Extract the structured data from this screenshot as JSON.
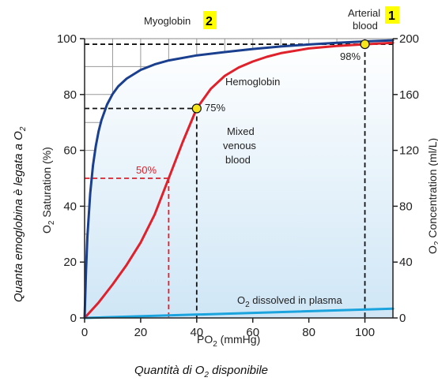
{
  "chart_data": {
    "type": "line",
    "xlabel": "PO",
    "xlabel_sub": "2",
    "xlabel_unit": " (mmHg)",
    "ylabel_left": "O",
    "ylabel_left_sub": "2",
    "ylabel_left_rest": " Saturation (%)",
    "ylabel_right": "O",
    "ylabel_right_sub": "2",
    "ylabel_right_rest": " Concentration (ml/L)",
    "outer_left_label": "Quanta emoglobina è legata a O",
    "outer_left_sub": "2",
    "outer_bottom_label": "Quantità di O",
    "outer_bottom_sub": "2",
    "outer_bottom_rest": " disponibile",
    "x_ticks": [
      0,
      20,
      40,
      60,
      80,
      100
    ],
    "y_ticks": [
      0,
      20,
      40,
      60,
      80,
      100
    ],
    "y2_ticks": [
      0,
      40,
      80,
      120,
      160,
      200
    ],
    "xlim": [
      0,
      110
    ],
    "ylim": [
      0,
      100
    ],
    "y2lim": [
      0,
      200
    ],
    "grid": true,
    "series": [
      {
        "name": "Myoglobin",
        "color": "#1a3f8f",
        "x": [
          0,
          0.5,
          1,
          2,
          3,
          4,
          5,
          6,
          8,
          10,
          12,
          15,
          20,
          25,
          30,
          40,
          50,
          60,
          70,
          80,
          90,
          100,
          110
        ],
        "y": [
          0,
          17.0,
          29.0,
          44.6,
          54.6,
          61.6,
          66.8,
          70.8,
          76.4,
          80.2,
          82.9,
          85.7,
          88.8,
          90.8,
          92.2,
          94.0,
          95.2,
          96.3,
          97.2,
          97.9,
          98.5,
          99.0,
          99.4
        ]
      },
      {
        "name": "Hemoglobin",
        "color": "#e0202a",
        "x": [
          0,
          5,
          10,
          15,
          20,
          25,
          30,
          35,
          40,
          45,
          50,
          55,
          60,
          65,
          70,
          80,
          90,
          100,
          110
        ],
        "y": [
          0,
          5.5,
          12.0,
          19.0,
          27.0,
          37.0,
          50.0,
          63.0,
          75.0,
          82.0,
          86.7,
          89.7,
          91.8,
          93.5,
          94.8,
          96.5,
          97.4,
          98.0,
          98.5
        ]
      },
      {
        "name": "O2 dissolved in plasma",
        "color": "#1aa3dd",
        "x": [
          0,
          110
        ],
        "y": [
          0,
          3.3
        ]
      }
    ],
    "labels": {
      "myoglobin": "Myoglobin",
      "hemoglobin": "Hemoglobin",
      "plasma": "O",
      "plasma_sub": "2",
      "plasma_rest": " dissolved in plasma",
      "arterial_1": "Arterial",
      "arterial_2": "blood",
      "mixed_1": "Mixed",
      "mixed_2": "venous",
      "mixed_3": "blood",
      "pct_50": "50%",
      "pct_75": "75%",
      "pct_98": "98%",
      "badge_2": "2",
      "badge_1": "1"
    },
    "reference_points": [
      {
        "name": "venous",
        "x": 40,
        "y": 75
      },
      {
        "name": "arterial",
        "x": 100,
        "y": 98
      }
    ],
    "half_saturation": {
      "x": 30,
      "y": 50
    }
  }
}
